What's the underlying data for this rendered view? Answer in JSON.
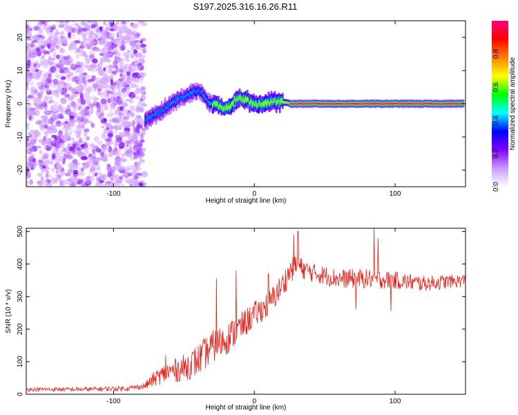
{
  "title": "S197.2025.316.16.26.R11",
  "chart_data": [
    {
      "type": "heatmap",
      "name": "spectrogram",
      "xlabel": "Height of straight line (km)",
      "ylabel": "Frequency (Hz)",
      "xlim": [
        -162,
        150
      ],
      "ylim": [
        -25,
        25
      ],
      "xticks": [
        -100,
        0,
        100
      ],
      "yticks": [
        -20,
        -10,
        0,
        10,
        20
      ],
      "noise_region_x": [
        -162,
        -78
      ],
      "signal_ridge": {
        "x": [
          -78,
          -72,
          -66,
          -60,
          -54,
          -48,
          -44,
          -40,
          -37,
          -34,
          -30,
          -26,
          -22,
          -18,
          -14,
          -10,
          -6,
          -2,
          0,
          4,
          8,
          12,
          16,
          20,
          26,
          40,
          60,
          80,
          100,
          120,
          148
        ],
        "freq": [
          -5,
          -3.5,
          -2,
          0,
          1.5,
          2.5,
          3.5,
          4,
          3,
          0.5,
          0,
          -0.5,
          -1.5,
          -1,
          1,
          1.5,
          1,
          0.5,
          0,
          0,
          0.2,
          0.5,
          0.5,
          0.5,
          0,
          0,
          0,
          0,
          0,
          0,
          0
        ]
      },
      "colorbar": {
        "label": "Normalized spectral amplitude",
        "range": [
          0,
          1
        ],
        "ticks": [
          "0.0",
          "0.2",
          "0.4",
          "0.6",
          "0.8"
        ],
        "tick_values": [
          0,
          0.2,
          0.4,
          0.6,
          0.8
        ],
        "colors": [
          "#ffffff",
          "#cc99ff",
          "#8000ff",
          "#0000ff",
          "#00ffff",
          "#00ff00",
          "#ffff00",
          "#ff8000",
          "#ff0000",
          "#ff0080"
        ]
      }
    },
    {
      "type": "line",
      "name": "snr",
      "xlabel": "Height of straight line (km)",
      "ylabel": "SNR (10 * v/v)",
      "xlim": [
        -162,
        150
      ],
      "ylim": [
        0,
        510
      ],
      "xticks": [
        -100,
        0,
        100
      ],
      "yticks": [
        0,
        100,
        200,
        300,
        400,
        500
      ],
      "color": "#e8201a",
      "trend": {
        "x": [
          -162,
          -120,
          -90,
          -78,
          -70,
          -60,
          -50,
          -40,
          -30,
          -20,
          -10,
          0,
          10,
          20,
          25,
          30,
          40,
          60,
          80,
          100,
          120,
          150
        ],
        "y": [
          15,
          15,
          18,
          25,
          50,
          70,
          80,
          105,
          145,
          170,
          205,
          245,
          275,
          335,
          375,
          395,
          375,
          355,
          355,
          350,
          340,
          350
        ]
      },
      "spread": {
        "x": [
          -162,
          -80,
          -70,
          -40,
          -20,
          0,
          20,
          40,
          80,
          150
        ],
        "y": [
          6,
          8,
          25,
          50,
          50,
          40,
          40,
          30,
          30,
          20
        ]
      },
      "spikes": [
        {
          "x": -63,
          "y": 120
        },
        {
          "x": -27,
          "y": 355
        },
        {
          "x": -13,
          "y": 380
        },
        {
          "x": 10,
          "y": 370
        },
        {
          "x": 28,
          "y": 490
        },
        {
          "x": 31,
          "y": 500
        },
        {
          "x": 85,
          "y": 510
        },
        {
          "x": 88,
          "y": 480
        },
        {
          "x": 72,
          "y": 260
        },
        {
          "x": 97,
          "y": 255
        }
      ]
    }
  ]
}
